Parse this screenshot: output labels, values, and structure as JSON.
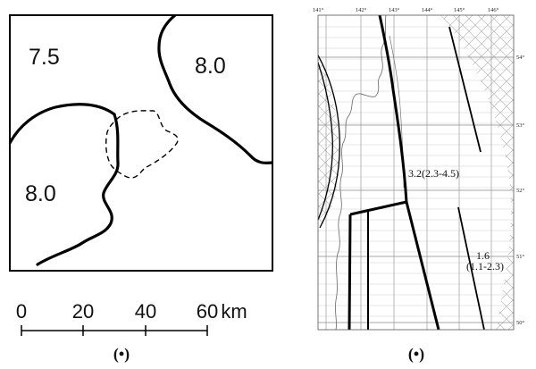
{
  "left_map": {
    "zones": [
      {
        "value": "7.5"
      },
      {
        "value": "8.0"
      },
      {
        "value": "8.0"
      }
    ],
    "scale_bar": {
      "ticks": [
        "0",
        "20",
        "40",
        "60"
      ],
      "unit": "km"
    },
    "caption": "(•)"
  },
  "right_map": {
    "longitude_ticks": [
      "141°",
      "142°",
      "143°",
      "144°",
      "145°",
      "146°"
    ],
    "latitude_ticks": [
      "54°",
      "53°",
      "52°",
      "51°",
      "50°"
    ],
    "annotations": [
      {
        "text": "3.2(2.3-4.5)"
      },
      {
        "text": "1.6"
      },
      {
        "text": "(1.1-2.3)"
      }
    ],
    "caption": "(•)"
  }
}
